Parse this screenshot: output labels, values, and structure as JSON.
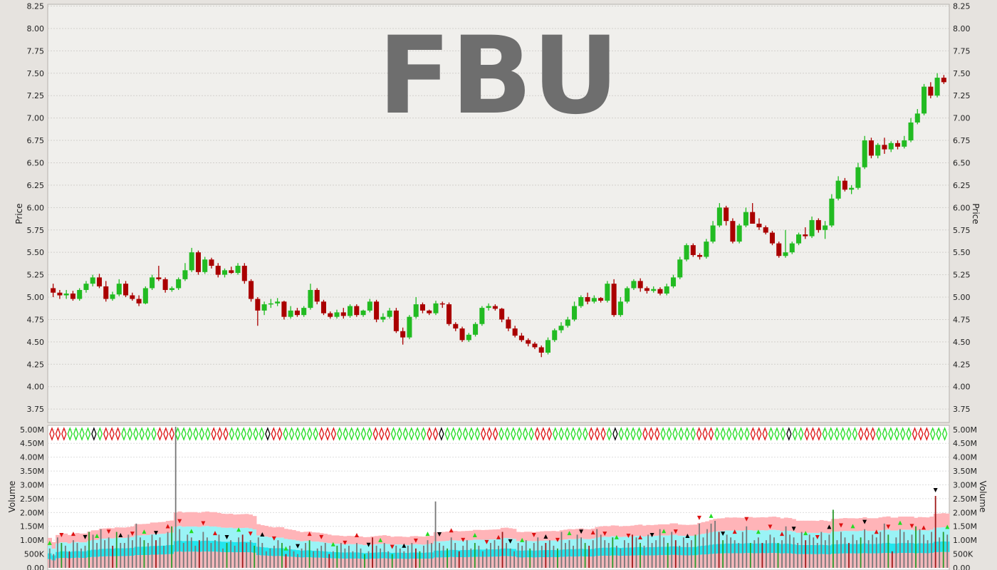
{
  "chart_data": [
    {
      "type": "ohlc",
      "watermark": "FBU",
      "ylabel": "Price",
      "ylim": [
        3.6,
        8.27
      ],
      "yticks": [
        "3.75",
        "4.00",
        "4.25",
        "4.50",
        "4.75",
        "5.00",
        "5.25",
        "5.50",
        "5.75",
        "6.00",
        "6.25",
        "6.50",
        "6.75",
        "7.00",
        "7.25",
        "7.50",
        "7.75",
        "8.00",
        "8.25"
      ],
      "grid": true,
      "up_color": "#22bb22",
      "down_color": "#aa0000",
      "neutral_color": "#000000",
      "series": [
        {
          "name": "",
          "values": [
            [
              5.1,
              5.15,
              5.0,
              5.05
            ],
            [
              5.05,
              5.08,
              4.98,
              5.02
            ],
            [
              5.02,
              5.08,
              4.98,
              5.04
            ],
            [
              5.04,
              5.07,
              4.96,
              4.98
            ],
            [
              4.98,
              5.1,
              4.96,
              5.08
            ],
            [
              5.08,
              5.18,
              5.05,
              5.15
            ],
            [
              5.15,
              5.25,
              5.12,
              5.22
            ],
            [
              5.22,
              5.26,
              5.1,
              5.12
            ],
            [
              5.12,
              5.18,
              4.95,
              4.98
            ],
            [
              4.98,
              5.06,
              4.96,
              5.03
            ],
            [
              5.03,
              5.2,
              5.01,
              5.15
            ],
            [
              5.15,
              5.18,
              5.0,
              5.02
            ],
            [
              5.02,
              5.05,
              4.96,
              4.98
            ],
            [
              4.98,
              5.02,
              4.9,
              4.93
            ],
            [
              4.93,
              5.12,
              4.92,
              5.1
            ],
            [
              5.1,
              5.25,
              5.08,
              5.22
            ],
            [
              5.22,
              5.35,
              5.18,
              5.2
            ],
            [
              5.2,
              5.22,
              5.05,
              5.08
            ],
            [
              5.08,
              5.12,
              5.06,
              5.1
            ],
            [
              5.1,
              5.22,
              5.08,
              5.2
            ],
            [
              5.2,
              5.38,
              5.18,
              5.3
            ],
            [
              5.3,
              5.55,
              5.28,
              5.5
            ],
            [
              5.5,
              5.52,
              5.25,
              5.28
            ],
            [
              5.28,
              5.45,
              5.26,
              5.42
            ],
            [
              5.42,
              5.44,
              5.32,
              5.35
            ],
            [
              5.35,
              5.38,
              5.22,
              5.25
            ],
            [
              5.25,
              5.32,
              5.22,
              5.3
            ],
            [
              5.3,
              5.34,
              5.26,
              5.27
            ],
            [
              5.27,
              5.38,
              5.25,
              5.35
            ],
            [
              5.35,
              5.38,
              5.15,
              5.18
            ],
            [
              5.18,
              5.2,
              4.95,
              4.98
            ],
            [
              4.98,
              5.0,
              4.68,
              4.85
            ],
            [
              4.85,
              4.95,
              4.8,
              4.92
            ],
            [
              4.92,
              4.98,
              4.88,
              4.93
            ],
            [
              4.93,
              4.99,
              4.9,
              4.95
            ],
            [
              4.95,
              4.96,
              4.75,
              4.78
            ],
            [
              4.78,
              4.9,
              4.76,
              4.85
            ],
            [
              4.85,
              4.88,
              4.78,
              4.8
            ],
            [
              4.8,
              4.9,
              4.78,
              4.88
            ],
            [
              4.88,
              5.15,
              4.86,
              5.08
            ],
            [
              5.08,
              5.1,
              4.92,
              4.95
            ],
            [
              4.95,
              4.97,
              4.8,
              4.82
            ],
            [
              4.82,
              4.84,
              4.76,
              4.78
            ],
            [
              4.78,
              4.86,
              4.76,
              4.83
            ],
            [
              4.83,
              4.88,
              4.76,
              4.79
            ],
            [
              4.79,
              4.92,
              4.77,
              4.9
            ],
            [
              4.9,
              4.92,
              4.78,
              4.8
            ],
            [
              4.8,
              4.86,
              4.78,
              4.85
            ],
            [
              4.85,
              4.98,
              4.83,
              4.95
            ],
            [
              4.95,
              4.97,
              4.72,
              4.75
            ],
            [
              4.75,
              4.82,
              4.72,
              4.78
            ],
            [
              4.78,
              4.88,
              4.76,
              4.85
            ],
            [
              4.85,
              4.88,
              4.6,
              4.62
            ],
            [
              4.62,
              4.66,
              4.47,
              4.55
            ],
            [
              4.55,
              4.8,
              4.53,
              4.78
            ],
            [
              4.78,
              5.0,
              4.76,
              4.92
            ],
            [
              4.92,
              4.94,
              4.82,
              4.85
            ],
            [
              4.85,
              4.86,
              4.8,
              4.82
            ],
            [
              4.82,
              4.96,
              4.8,
              4.93
            ],
            [
              4.93,
              4.95,
              4.88,
              4.92
            ],
            [
              4.92,
              4.94,
              4.68,
              4.7
            ],
            [
              4.7,
              4.72,
              4.62,
              4.65
            ],
            [
              4.65,
              4.67,
              4.5,
              4.52
            ],
            [
              4.52,
              4.6,
              4.5,
              4.58
            ],
            [
              4.58,
              4.72,
              4.56,
              4.7
            ],
            [
              4.7,
              4.9,
              4.68,
              4.88
            ],
            [
              4.88,
              4.93,
              4.85,
              4.9
            ],
            [
              4.9,
              4.92,
              4.85,
              4.87
            ],
            [
              4.87,
              4.88,
              4.72,
              4.75
            ],
            [
              4.75,
              4.78,
              4.62,
              4.65
            ],
            [
              4.65,
              4.68,
              4.55,
              4.57
            ],
            [
              4.57,
              4.6,
              4.5,
              4.52
            ],
            [
              4.52,
              4.54,
              4.45,
              4.48
            ],
            [
              4.48,
              4.5,
              4.42,
              4.44
            ],
            [
              4.44,
              4.46,
              4.33,
              4.38
            ],
            [
              4.38,
              4.55,
              4.36,
              4.52
            ],
            [
              4.52,
              4.65,
              4.5,
              4.63
            ],
            [
              4.63,
              4.72,
              4.6,
              4.68
            ],
            [
              4.68,
              4.78,
              4.66,
              4.75
            ],
            [
              4.75,
              4.95,
              4.73,
              4.9
            ],
            [
              4.9,
              5.02,
              4.88,
              5.0
            ],
            [
              5.0,
              5.05,
              4.92,
              4.95
            ],
            [
              4.95,
              5.02,
              4.93,
              4.99
            ],
            [
              4.99,
              5.0,
              4.94,
              4.96
            ],
            [
              4.96,
              5.18,
              4.94,
              5.15
            ],
            [
              5.15,
              5.2,
              4.78,
              4.8
            ],
            [
              4.8,
              5.0,
              4.78,
              4.95
            ],
            [
              4.95,
              5.12,
              4.93,
              5.1
            ],
            [
              5.1,
              5.2,
              5.08,
              5.18
            ],
            [
              5.18,
              5.21,
              5.06,
              5.1
            ],
            [
              5.1,
              5.12,
              5.04,
              5.07
            ],
            [
              5.07,
              5.12,
              5.05,
              5.09
            ],
            [
              5.09,
              5.11,
              5.02,
              5.04
            ],
            [
              5.04,
              5.15,
              5.02,
              5.12
            ],
            [
              5.12,
              5.25,
              5.1,
              5.22
            ],
            [
              5.22,
              5.45,
              5.2,
              5.42
            ],
            [
              5.42,
              5.6,
              5.4,
              5.58
            ],
            [
              5.58,
              5.6,
              5.45,
              5.47
            ],
            [
              5.47,
              5.49,
              5.42,
              5.45
            ],
            [
              5.45,
              5.65,
              5.43,
              5.62
            ],
            [
              5.62,
              5.85,
              5.6,
              5.8
            ],
            [
              5.8,
              6.05,
              5.78,
              6.0
            ],
            [
              6.0,
              6.02,
              5.8,
              5.85
            ],
            [
              5.85,
              5.88,
              5.6,
              5.62
            ],
            [
              5.62,
              5.82,
              5.6,
              5.8
            ],
            [
              5.8,
              6.0,
              5.78,
              5.95
            ],
            [
              5.95,
              6.05,
              5.92,
              5.82
            ],
            [
              5.82,
              5.88,
              5.75,
              5.78
            ],
            [
              5.78,
              5.8,
              5.7,
              5.72
            ],
            [
              5.72,
              5.74,
              5.58,
              5.6
            ],
            [
              5.6,
              5.62,
              5.44,
              5.46
            ],
            [
              5.46,
              5.75,
              5.44,
              5.5
            ],
            [
              5.5,
              5.62,
              5.48,
              5.6
            ],
            [
              5.6,
              5.72,
              5.58,
              5.7
            ],
            [
              5.7,
              5.78,
              5.65,
              5.68
            ],
            [
              5.68,
              5.9,
              5.66,
              5.86
            ],
            [
              5.86,
              5.88,
              5.72,
              5.75
            ],
            [
              5.75,
              5.85,
              5.65,
              5.8
            ],
            [
              5.8,
              6.15,
              5.78,
              6.1
            ],
            [
              6.1,
              6.35,
              6.08,
              6.3
            ],
            [
              6.3,
              6.33,
              6.18,
              6.2
            ],
            [
              6.2,
              6.25,
              6.15,
              6.22
            ],
            [
              6.22,
              6.5,
              6.2,
              6.45
            ],
            [
              6.45,
              6.8,
              6.43,
              6.75
            ],
            [
              6.75,
              6.78,
              6.55,
              6.58
            ],
            [
              6.58,
              6.72,
              6.55,
              6.7
            ],
            [
              6.7,
              6.78,
              6.6,
              6.65
            ],
            [
              6.65,
              6.74,
              6.62,
              6.72
            ],
            [
              6.72,
              6.75,
              6.65,
              6.68
            ],
            [
              6.68,
              6.8,
              6.66,
              6.75
            ],
            [
              6.75,
              7.0,
              6.73,
              6.95
            ],
            [
              6.95,
              7.1,
              6.93,
              7.05
            ],
            [
              7.05,
              7.38,
              7.03,
              7.35
            ],
            [
              7.35,
              7.4,
              7.22,
              7.25
            ],
            [
              7.25,
              7.5,
              7.23,
              7.45
            ],
            [
              7.45,
              7.48,
              7.38,
              7.4
            ]
          ]
        }
      ]
    },
    {
      "type": "bar",
      "ylabel": "Volume",
      "ylim": [
        0,
        5.15
      ],
      "yticks": [
        "0.00",
        "500K",
        "1.00M",
        "1.50M",
        "2.00M",
        "2.50M",
        "3.00M",
        "3.50M",
        "4.00M",
        "4.50M",
        "5.00M"
      ],
      "ytick_values": [
        0,
        0.5,
        1.0,
        1.5,
        2.0,
        2.5,
        3.0,
        3.5,
        4.0,
        4.5,
        5.0
      ],
      "grid": true,
      "series": [
        {
          "name": "",
          "values": [
            0.7,
            0.5,
            1.1,
            0.9,
            0.8,
            0.6,
            1.0,
            0.9,
            0.7,
            0.8,
            1.3,
            1.2,
            0.9,
            1.4,
            1.0,
            1.1,
            0.8,
            1.3,
            0.9,
            0.9,
            1.2,
            1.0,
            1.6,
            1.1,
            1.0,
            0.9,
            1.2,
            1.0,
            1.1,
            0.8,
            1.3,
            1.5,
            5.1,
            1.4,
            0.9,
            1.2,
            1.1,
            0.8,
            1.0,
            1.3,
            1.1,
            0.9,
            1.0,
            1.2,
            0.7,
            0.9,
            1.0,
            0.8,
            1.1,
            1.2,
            0.9,
            1.0,
            0.8,
            1.1,
            0.9,
            0.6,
            0.7,
            0.8,
            1.0,
            0.9,
            0.5,
            0.8,
            0.6,
            0.5,
            0.7,
            0.9,
            1.0,
            0.6,
            0.7,
            0.8,
            0.9,
            0.5,
            0.6,
            0.8,
            0.9,
            0.7,
            0.8,
            0.6,
            0.9,
            0.7,
            0.5,
            0.6,
            1.1,
            0.8,
            0.7,
            0.9,
            0.6,
            0.5,
            0.8,
            0.7,
            0.6,
            0.8,
            0.9,
            0.7,
            0.6,
            0.8,
            1.0,
            0.9,
            2.4,
            0.9,
            0.8,
            0.7,
            1.1,
            0.9,
            0.6,
            0.8,
            1.0,
            0.7,
            0.9,
            0.8,
            0.6,
            0.7,
            0.9,
            1.0,
            0.8,
            1.3,
            0.9,
            0.7,
            0.6,
            0.9,
            0.8,
            1.0,
            0.7,
            0.9,
            1.1,
            0.8,
            0.9,
            1.0,
            0.8,
            0.7,
            1.3,
            0.9,
            1.0,
            0.8,
            1.2,
            1.1,
            0.9,
            0.8,
            1.0,
            1.4,
            1.2,
            1.0,
            0.9,
            1.1,
            0.8,
            0.7,
            1.0,
            0.9,
            1.2,
            1.1,
            0.9,
            0.8,
            1.2,
            0.9,
            1.0,
            1.4,
            1.1,
            0.9,
            1.3,
            1.0,
            0.8,
            1.1,
            0.9,
            1.0,
            1.2,
            1.6,
            1.1,
            1.4,
            1.6,
            1.7,
            1.3,
            1.0,
            1.2,
            1.1,
            1.0,
            0.9,
            1.3,
            1.5,
            0.9,
            1.0,
            1.1,
            0.9,
            1.0,
            1.2,
            1.1,
            0.9,
            1.0,
            1.5,
            1.2,
            1.1,
            0.9,
            1.3,
            1.0,
            1.2,
            1.1,
            0.9,
            1.3,
            1.0,
            1.2,
            2.1,
            1.0,
            1.3,
            1.1,
            0.9,
            1.2,
            1.0,
            1.1,
            1.4,
            1.0,
            1.2,
            1.1,
            1.3,
            1.6,
            1.2,
            0.6,
            1.1,
            1.4,
            1.3,
            1.0,
            1.2,
            1.5,
            1.4,
            1.2,
            1.0,
            1.3,
            2.6,
            1.1,
            1.3,
            1.2
          ]
        }
      ]
    }
  ]
}
